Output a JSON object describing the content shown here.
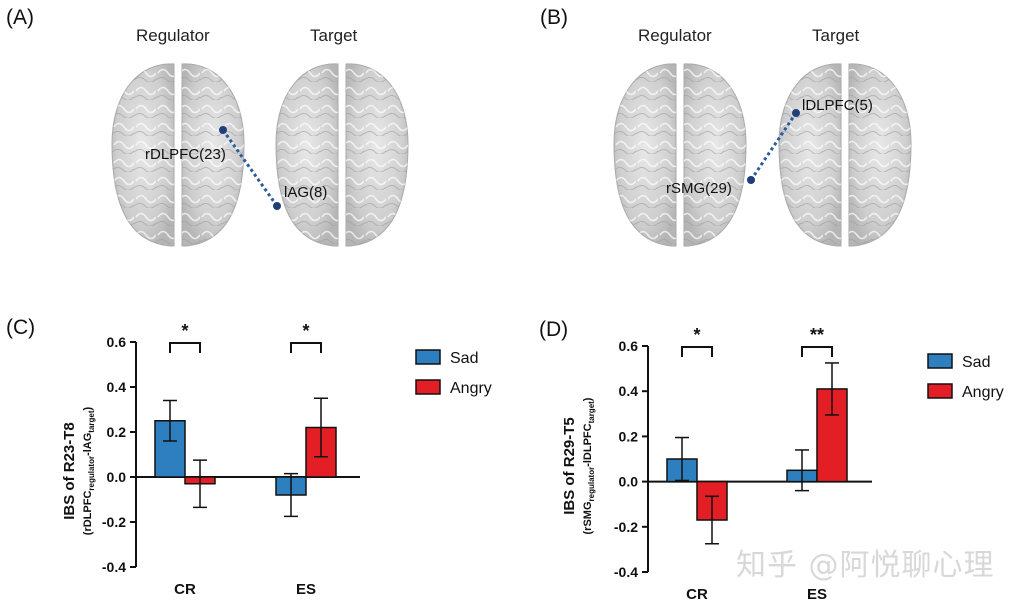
{
  "panels": {
    "A": {
      "label": "(A)",
      "regulator_title": "Regulator",
      "target_title": "Target",
      "regulator_roi": "rDLPFC(23)",
      "target_roi": "lAG(8)"
    },
    "B": {
      "label": "(B)",
      "regulator_title": "Regulator",
      "target_title": "Target",
      "regulator_roi": "rSMG(29)",
      "target_roi": "lDLPFC(5)"
    }
  },
  "colors": {
    "sad": "#2e7fc0",
    "angry": "#e31e24",
    "link": "#2a5c9a"
  },
  "watermark": "知乎 @阿悦聊心理",
  "chart_data": [
    {
      "panel_label": "(C)",
      "type": "bar",
      "categories": [
        "CR",
        "ES"
      ],
      "series": [
        {
          "name": "Sad",
          "values": [
            0.25,
            -0.08
          ],
          "errors": [
            0.09,
            0.095
          ]
        },
        {
          "name": "Angry",
          "values": [
            -0.03,
            0.22
          ],
          "errors": [
            0.105,
            0.13
          ]
        }
      ],
      "ylabel_main": "IBS of R23-T8",
      "ylabel_sub": "rDLPFC",
      "ylabel_sub_a": "regulator",
      "ylabel_sub_b": "-lAG",
      "ylabel_sub_c": "target",
      "ylim": [
        -0.4,
        0.6
      ],
      "yticks": [
        "0.6",
        "0.4",
        "0.2",
        "0.0",
        "-0.2",
        "-0.4"
      ],
      "significance": [
        "*",
        "*"
      ],
      "legend": [
        "Sad",
        "Angry"
      ]
    },
    {
      "panel_label": "(D)",
      "type": "bar",
      "categories": [
        "CR",
        "ES"
      ],
      "series": [
        {
          "name": "Sad",
          "values": [
            0.1,
            0.05
          ],
          "errors": [
            0.095,
            0.09
          ]
        },
        {
          "name": "Angry",
          "values": [
            -0.17,
            0.41
          ],
          "errors": [
            0.105,
            0.115
          ]
        }
      ],
      "ylabel_main": "IBS of R29-T5",
      "ylabel_sub": "rSMG",
      "ylabel_sub_a": "regulator",
      "ylabel_sub_b": "-lDLPFC",
      "ylabel_sub_c": "target",
      "ylim": [
        -0.4,
        0.6
      ],
      "yticks": [
        "0.6",
        "0.4",
        "0.2",
        "0.0",
        "-0.2",
        "-0.4"
      ],
      "significance": [
        "*",
        "**"
      ],
      "legend": [
        "Sad",
        "Angry"
      ]
    }
  ]
}
